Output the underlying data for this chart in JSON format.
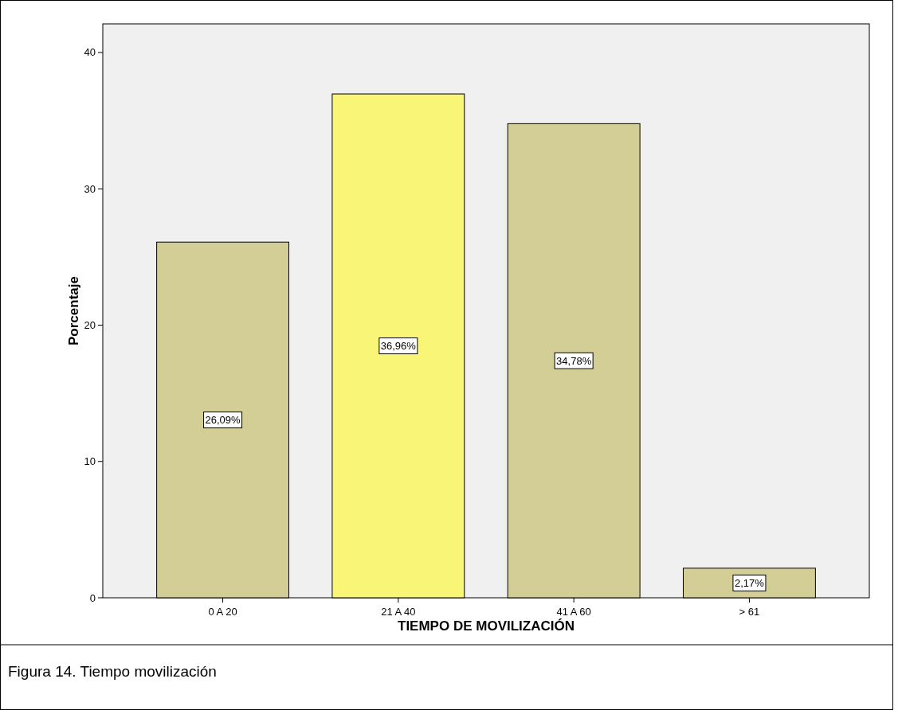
{
  "chart_data": {
    "type": "bar",
    "xlabel": "TIEMPO DE MOVILIZACIÓN",
    "ylabel": "Porcentaje",
    "categories": [
      "0 A 20",
      "21 A 40",
      "41 A 60",
      "> 61"
    ],
    "values": [
      26.09,
      36.96,
      34.78,
      2.17
    ],
    "colors": [
      "#d3ce96",
      "#f8f577",
      "#d3ce96",
      "#d3ce96"
    ],
    "value_labels": [
      "26,09%",
      "36,96%",
      "34,78%",
      "2,17%"
    ],
    "ylim": [
      0,
      42.1
    ],
    "yticks": [
      0,
      10,
      20,
      30,
      40
    ],
    "grid": false,
    "annotations": [
      "Figura 14.  Tiempo movilización"
    ]
  }
}
